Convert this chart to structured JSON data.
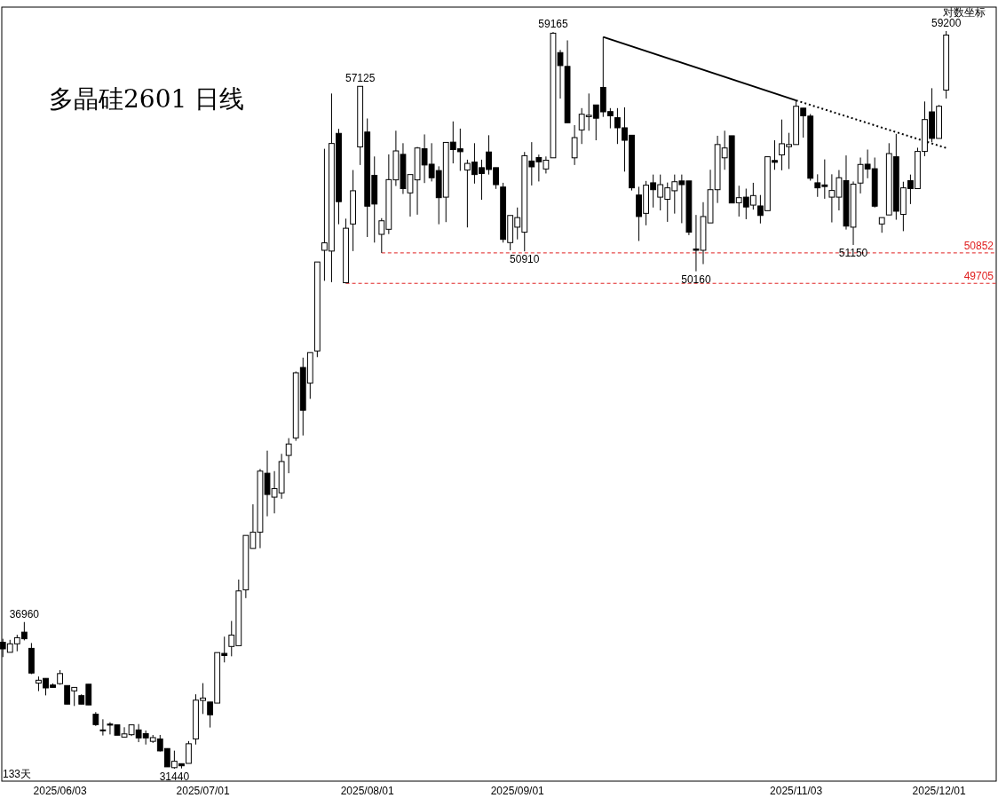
{
  "chart_data": {
    "type": "candlestick",
    "title": "多晶硅2601 日线",
    "tick_labels": "x",
    "categories": [
      null,
      null,
      null,
      null,
      null,
      null,
      null,
      null,
      "2025/06/03",
      null,
      null,
      null,
      null,
      null,
      null,
      null,
      null,
      null,
      null,
      null,
      null,
      null,
      null,
      null,
      null,
      null,
      null,
      null,
      "2025/07/01",
      null,
      null,
      null,
      null,
      null,
      null,
      null,
      null,
      null,
      null,
      null,
      null,
      null,
      null,
      null,
      null,
      null,
      null,
      null,
      null,
      null,
      null,
      "2025/08/01",
      null,
      null,
      null,
      null,
      null,
      null,
      null,
      null,
      null,
      null,
      null,
      null,
      null,
      null,
      null,
      null,
      null,
      null,
      null,
      null,
      "2025/09/01",
      null,
      null,
      null,
      null,
      null,
      null,
      null,
      null,
      null,
      null,
      null,
      null,
      null,
      null,
      null,
      null,
      null,
      null,
      null,
      null,
      null,
      null,
      null,
      null,
      null,
      null,
      null,
      null,
      null,
      null,
      null,
      null,
      null,
      null,
      null,
      null,
      null,
      null,
      "2025/11/03",
      null,
      null,
      null,
      null,
      null,
      null,
      null,
      null,
      null,
      null,
      null,
      null,
      null,
      null,
      null,
      null,
      null,
      null,
      null,
      "2025/12/01",
      null
    ],
    "ohlc": [
      [
        36200,
        36330,
        35640,
        35950
      ],
      [
        35820,
        36290,
        35820,
        36140
      ],
      [
        36140,
        36480,
        35860,
        36370
      ],
      [
        36580,
        36960,
        36270,
        36330
      ],
      [
        35970,
        36170,
        35000,
        35040
      ],
      [
        34660,
        34910,
        34360,
        34770
      ],
      [
        34840,
        34840,
        34200,
        34480
      ],
      [
        34590,
        34650,
        34500,
        34500
      ],
      [
        34640,
        35150,
        34600,
        35020
      ],
      [
        34570,
        34570,
        33870,
        33870
      ],
      [
        34370,
        34500,
        33800,
        34500
      ],
      [
        34190,
        34240,
        33870,
        33870
      ],
      [
        34620,
        34620,
        33840,
        33840
      ],
      [
        33490,
        33570,
        33050,
        33100
      ],
      [
        32900,
        33300,
        32690,
        32870
      ],
      [
        33120,
        33190,
        32730,
        33080
      ],
      [
        33090,
        33090,
        32700,
        32700
      ],
      [
        32630,
        33000,
        32630,
        32750
      ],
      [
        32720,
        33090,
        32670,
        33090
      ],
      [
        32900,
        33120,
        32440,
        32600
      ],
      [
        32760,
        32880,
        32350,
        32600
      ],
      [
        32470,
        32710,
        32410,
        32610
      ],
      [
        32560,
        32710,
        32090,
        32110
      ],
      [
        32200,
        32200,
        31510,
        31510
      ],
      [
        31480,
        32120,
        31440,
        31720
      ],
      [
        31630,
        31630,
        31450,
        31550
      ],
      [
        31640,
        32480,
        31640,
        32380
      ],
      [
        32560,
        34240,
        32350,
        34020
      ],
      [
        34010,
        34660,
        33500,
        34100
      ],
      [
        33950,
        33950,
        32990,
        33470
      ],
      [
        33910,
        35810,
        33910,
        35810
      ],
      [
        35780,
        36410,
        35440,
        35700
      ],
      [
        36040,
        37000,
        35670,
        36470
      ],
      [
        36070,
        38560,
        36070,
        38130
      ],
      [
        38170,
        40220,
        37860,
        40220
      ],
      [
        39730,
        41390,
        39730,
        40340
      ],
      [
        40340,
        42720,
        39740,
        42640
      ],
      [
        42560,
        43410,
        40940,
        41760
      ],
      [
        41660,
        42640,
        41050,
        41980
      ],
      [
        41820,
        43290,
        41600,
        43000
      ],
      [
        43230,
        43880,
        42560,
        43660
      ],
      [
        43890,
        46390,
        43780,
        46340
      ],
      [
        46540,
        46910,
        43980,
        44930
      ],
      [
        45950,
        47100,
        45360,
        47100
      ],
      [
        47160,
        50510,
        46930,
        50510
      ],
      [
        50950,
        54770,
        49800,
        51230
      ],
      [
        50920,
        56850,
        49750,
        54970
      ],
      [
        55350,
        55520,
        51930,
        52780
      ],
      [
        49730,
        52140,
        49705,
        51780
      ],
      [
        51940,
        53970,
        50920,
        53190
      ],
      [
        54840,
        57125,
        54160,
        57120
      ],
      [
        55400,
        55910,
        51450,
        52610
      ],
      [
        53770,
        54480,
        51240,
        52690
      ],
      [
        51550,
        52160,
        50852,
        52060
      ],
      [
        51740,
        54560,
        51560,
        53610
      ],
      [
        53600,
        55450,
        53370,
        54690
      ],
      [
        54560,
        54980,
        53070,
        53270
      ],
      [
        53110,
        53800,
        52220,
        53800
      ],
      [
        53600,
        54840,
        52290,
        54800
      ],
      [
        54770,
        55310,
        53480,
        54160
      ],
      [
        54190,
        54980,
        53540,
        53680
      ],
      [
        53950,
        54110,
        51930,
        52930
      ],
      [
        52950,
        55010,
        52010,
        55010
      ],
      [
        55020,
        55800,
        54220,
        54740
      ],
      [
        54770,
        55530,
        53940,
        54660
      ],
      [
        53970,
        54360,
        51810,
        54220
      ],
      [
        54270,
        54980,
        53460,
        53800
      ],
      [
        54060,
        54360,
        52850,
        53840
      ],
      [
        54650,
        55280,
        53800,
        53990
      ],
      [
        54060,
        54060,
        53260,
        53420
      ],
      [
        53330,
        53490,
        51240,
        51360
      ],
      [
        51240,
        52260,
        50950,
        52260
      ],
      [
        51820,
        52560,
        51360,
        52180
      ],
      [
        51630,
        54650,
        50910,
        54510
      ],
      [
        54310,
        55020,
        53390,
        54090
      ],
      [
        54440,
        54550,
        53540,
        54280
      ],
      [
        54010,
        54480,
        53840,
        54340
      ],
      [
        54430,
        59165,
        54430,
        59120
      ],
      [
        58390,
        58490,
        56660,
        57900
      ],
      [
        57870,
        58850,
        55750,
        55750
      ],
      [
        54430,
        55660,
        54160,
        55190
      ],
      [
        55480,
        56300,
        54950,
        56070
      ],
      [
        55980,
        56850,
        55450,
        56030
      ],
      [
        56420,
        56420,
        55090,
        55920
      ],
      [
        57080,
        58980,
        55970,
        56160
      ],
      [
        56170,
        56300,
        55540,
        56010
      ],
      [
        55940,
        56300,
        54950,
        55560
      ],
      [
        55560,
        56330,
        53910,
        55090
      ],
      [
        55280,
        55280,
        53200,
        53300
      ],
      [
        53030,
        53340,
        51300,
        52220
      ],
      [
        52340,
        53560,
        51890,
        53400
      ],
      [
        53490,
        53800,
        52560,
        53230
      ],
      [
        52950,
        53800,
        52450,
        53420
      ],
      [
        52870,
        53500,
        52020,
        53300
      ],
      [
        53190,
        53800,
        52330,
        53530
      ],
      [
        53560,
        53800,
        51970,
        53420
      ],
      [
        53560,
        53560,
        51520,
        51630
      ],
      [
        51000,
        52280,
        50160,
        50950
      ],
      [
        50950,
        52760,
        50430,
        52220
      ],
      [
        51980,
        53980,
        51980,
        53230
      ],
      [
        53230,
        55260,
        52730,
        54930
      ],
      [
        54430,
        55450,
        53980,
        54800
      ],
      [
        55260,
        55260,
        52730,
        52730
      ],
      [
        52740,
        53380,
        52220,
        52930
      ],
      [
        52950,
        53270,
        52120,
        52580
      ],
      [
        52650,
        53490,
        52480,
        53010
      ],
      [
        52620,
        53030,
        51960,
        52260
      ],
      [
        52440,
        54470,
        52440,
        54470
      ],
      [
        54330,
        55090,
        53980,
        54260
      ],
      [
        54540,
        55870,
        53960,
        54960
      ],
      [
        54850,
        55370,
        54010,
        54930
      ],
      [
        54930,
        56590,
        54930,
        56370
      ],
      [
        56300,
        56300,
        55190,
        56010
      ],
      [
        56000,
        56080,
        53570,
        53660
      ],
      [
        53490,
        53810,
        52960,
        53300
      ],
      [
        53410,
        54370,
        52890,
        53350
      ],
      [
        52950,
        53810,
        52000,
        53200
      ],
      [
        52950,
        53970,
        52450,
        53680
      ],
      [
        53570,
        54520,
        51730,
        51860
      ],
      [
        51820,
        53540,
        51150,
        53440
      ],
      [
        53480,
        54440,
        53090,
        54180
      ],
      [
        54190,
        54740,
        53660,
        54010
      ],
      [
        54020,
        54440,
        52560,
        52610
      ],
      [
        51940,
        52180,
        51610,
        52180
      ],
      [
        52280,
        54980,
        52280,
        54590
      ],
      [
        54470,
        55330,
        52100,
        52420
      ],
      [
        52300,
        53530,
        51670,
        53300
      ],
      [
        53570,
        53800,
        52690,
        53270
      ],
      [
        53270,
        54810,
        53270,
        54670
      ],
      [
        54670,
        56550,
        54490,
        55870
      ],
      [
        56160,
        57050,
        55020,
        55160
      ],
      [
        55160,
        56420,
        55160,
        56370
      ],
      [
        56980,
        59200,
        56660,
        59050
      ]
    ],
    "series": [
      {
        "type": "line",
        "color": "#000000",
        "line_style": "solid",
        "values": [
          null,
          null,
          null,
          null,
          null,
          null,
          null,
          null,
          null,
          null,
          null,
          null,
          null,
          null,
          null,
          null,
          null,
          null,
          null,
          null,
          null,
          null,
          null,
          null,
          null,
          null,
          null,
          null,
          null,
          null,
          null,
          null,
          null,
          null,
          null,
          null,
          null,
          null,
          null,
          null,
          null,
          null,
          null,
          null,
          null,
          null,
          null,
          null,
          null,
          null,
          null,
          null,
          null,
          null,
          null,
          null,
          null,
          null,
          null,
          null,
          null,
          null,
          null,
          null,
          null,
          null,
          null,
          null,
          null,
          null,
          null,
          null,
          null,
          null,
          null,
          null,
          null,
          null,
          null,
          null,
          null,
          null,
          null,
          null,
          58980,
          null,
          null,
          null,
          null,
          null,
          null,
          null,
          null,
          null,
          null,
          null,
          null,
          null,
          null,
          null,
          null,
          null,
          null,
          null,
          null,
          null,
          null,
          null,
          null,
          null,
          null,
          56590,
          null,
          null,
          null,
          null,
          null,
          null,
          null,
          null,
          null,
          null,
          null,
          null,
          null,
          null,
          null,
          null,
          null,
          null,
          null,
          null,
          null
        ]
      },
      {
        "type": "line",
        "color": "#000000",
        "line_style": "dotted",
        "values": [
          null,
          null,
          null,
          null,
          null,
          null,
          null,
          null,
          null,
          null,
          null,
          null,
          null,
          null,
          null,
          null,
          null,
          null,
          null,
          null,
          null,
          null,
          null,
          null,
          null,
          null,
          null,
          null,
          null,
          null,
          null,
          null,
          null,
          null,
          null,
          null,
          null,
          null,
          null,
          null,
          null,
          null,
          null,
          null,
          null,
          null,
          null,
          null,
          null,
          null,
          null,
          null,
          null,
          null,
          null,
          null,
          null,
          null,
          null,
          null,
          null,
          null,
          null,
          null,
          null,
          null,
          null,
          null,
          null,
          null,
          null,
          null,
          null,
          null,
          null,
          null,
          null,
          null,
          null,
          null,
          null,
          null,
          null,
          null,
          null,
          null,
          null,
          null,
          null,
          null,
          null,
          null,
          null,
          null,
          null,
          null,
          null,
          null,
          null,
          null,
          null,
          null,
          null,
          null,
          null,
          null,
          null,
          null,
          null,
          null,
          null,
          56590,
          null,
          null,
          null,
          null,
          null,
          null,
          null,
          null,
          null,
          null,
          null,
          null,
          null,
          null,
          null,
          null,
          null,
          null,
          null,
          null,
          54800
        ]
      }
    ],
    "ref_lines": [
      {
        "axis": "y",
        "value": 50852,
        "label": "50852",
        "color": "#e02020",
        "line_style": "dashed"
      },
      {
        "axis": "y",
        "value": 49705,
        "label": "49705",
        "color": "#e02020",
        "line_style": "dashed"
      }
    ],
    "annotations": [
      "133天",
      "对数坐标",
      {
        "text": "36960",
        "y": 36960
      },
      {
        "text": "31440",
        "y": 31440
      },
      {
        "text": "57125",
        "y": 57125
      },
      {
        "text": "50910",
        "y": 50910
      },
      {
        "text": "59165",
        "y": 59165
      },
      {
        "text": "50160",
        "y": 50160
      },
      {
        "text": "51150",
        "y": 51150
      },
      {
        "text": "59200",
        "y": 59200
      }
    ]
  }
}
